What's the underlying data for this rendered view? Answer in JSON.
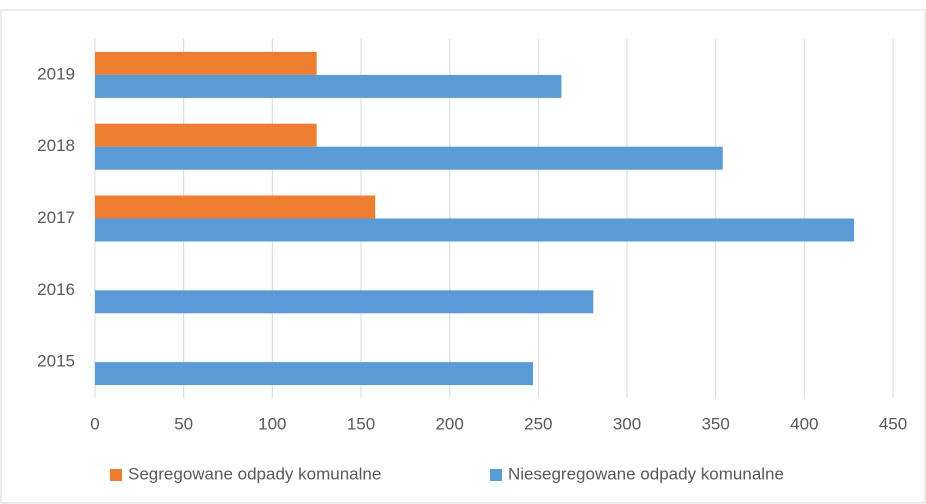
{
  "chart_data": {
    "type": "bar",
    "orientation": "horizontal",
    "categories": [
      "2015",
      "2016",
      "2017",
      "2018",
      "2019"
    ],
    "series": [
      {
        "name": "Segregowane odpady komunalne",
        "color": "#ed7d31",
        "values": [
          null,
          null,
          158,
          125,
          125
        ]
      },
      {
        "name": "Niesegregowane odpady komunalne",
        "color": "#5b9bd5",
        "values": [
          247,
          281,
          428,
          354,
          263
        ]
      }
    ],
    "xlim": [
      0,
      450
    ],
    "xticks": [
      0,
      50,
      100,
      150,
      200,
      250,
      300,
      350,
      400,
      450
    ],
    "grid": true,
    "legend": "bottom"
  }
}
